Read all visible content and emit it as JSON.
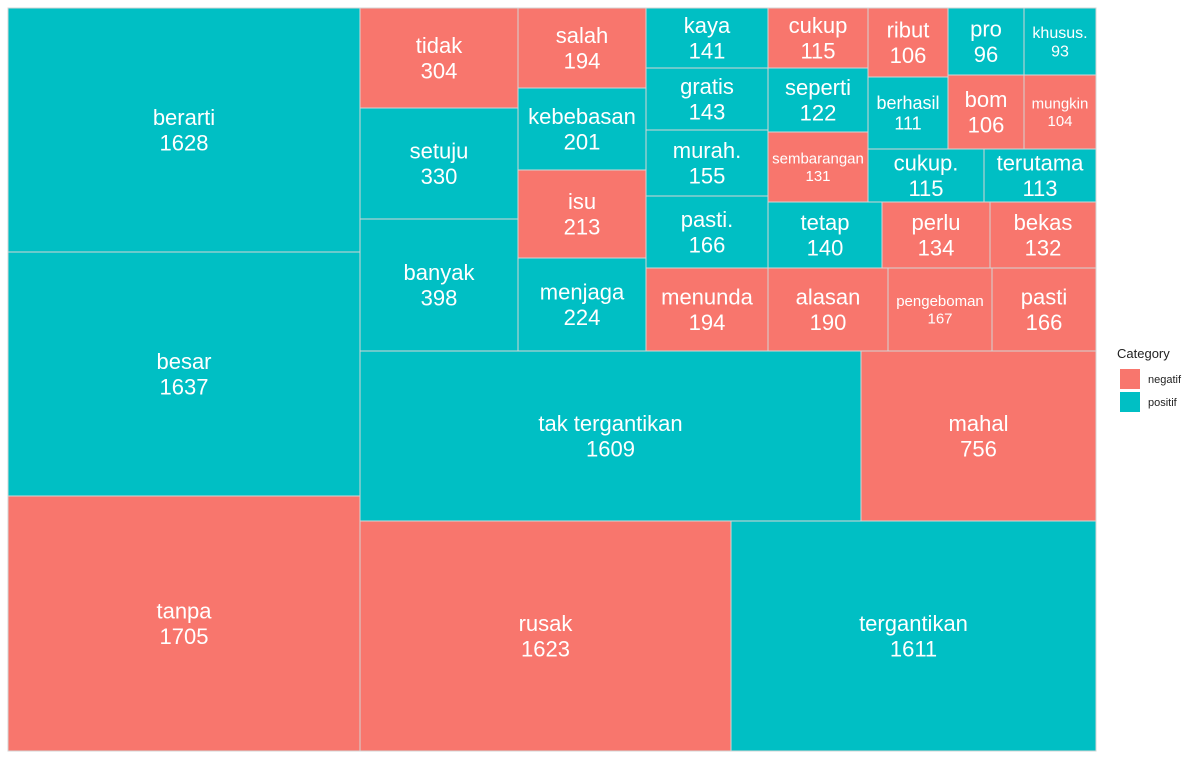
{
  "chart_data": {
    "type": "treemap",
    "legend": {
      "title": "Category",
      "placement": "right",
      "entries": [
        {
          "name": "negatif",
          "color": "#F8766D"
        },
        {
          "name": "positif",
          "color": "#00BFC4"
        }
      ]
    },
    "tiles": [
      {
        "label": "berarti",
        "value": 1628,
        "category": "positif"
      },
      {
        "label": "besar",
        "value": 1637,
        "category": "positif"
      },
      {
        "label": "tanpa",
        "value": 1705,
        "category": "negatif"
      },
      {
        "label": "tidak",
        "value": 304,
        "category": "negatif"
      },
      {
        "label": "setuju",
        "value": 330,
        "category": "positif"
      },
      {
        "label": "banyak",
        "value": 398,
        "category": "positif"
      },
      {
        "label": "salah",
        "value": 194,
        "category": "negatif"
      },
      {
        "label": "kebebasan",
        "value": 201,
        "category": "positif"
      },
      {
        "label": "isu",
        "value": 213,
        "category": "negatif"
      },
      {
        "label": "menjaga",
        "value": 224,
        "category": "positif"
      },
      {
        "label": "kaya",
        "value": 141,
        "category": "positif"
      },
      {
        "label": "gratis",
        "value": 143,
        "category": "positif"
      },
      {
        "label": "murah.",
        "value": 155,
        "category": "positif"
      },
      {
        "label": "pasti.",
        "value": 166,
        "category": "positif"
      },
      {
        "label": "cukup",
        "value": 115,
        "category": "negatif"
      },
      {
        "label": "seperti",
        "value": 122,
        "category": "positif"
      },
      {
        "label": "sembarangan",
        "value": 131,
        "category": "negatif"
      },
      {
        "label": "tetap",
        "value": 140,
        "category": "positif"
      },
      {
        "label": "ribut",
        "value": 106,
        "category": "negatif"
      },
      {
        "label": "berhasil",
        "value": 111,
        "category": "positif"
      },
      {
        "label": "pro",
        "value": 96,
        "category": "positif"
      },
      {
        "label": "khusus.",
        "value": 93,
        "category": "positif"
      },
      {
        "label": "bom",
        "value": 106,
        "category": "negatif"
      },
      {
        "label": "mungkin",
        "value": 104,
        "category": "negatif"
      },
      {
        "label": "cukup.",
        "value": 115,
        "category": "positif"
      },
      {
        "label": "terutama",
        "value": 113,
        "category": "positif"
      },
      {
        "label": "perlu",
        "value": 134,
        "category": "negatif"
      },
      {
        "label": "bekas",
        "value": 132,
        "category": "negatif"
      },
      {
        "label": "menunda",
        "value": 194,
        "category": "negatif"
      },
      {
        "label": "alasan",
        "value": 190,
        "category": "negatif"
      },
      {
        "label": "pengeboman",
        "value": 167,
        "category": "negatif"
      },
      {
        "label": "pasti",
        "value": 166,
        "category": "negatif"
      },
      {
        "label": "tak tergantikan",
        "value": 1609,
        "category": "positif"
      },
      {
        "label": "mahal",
        "value": 756,
        "category": "negatif"
      },
      {
        "label": "rusak",
        "value": 1623,
        "category": "negatif"
      },
      {
        "label": "tergantikan",
        "value": 1611,
        "category": "positif"
      }
    ]
  }
}
